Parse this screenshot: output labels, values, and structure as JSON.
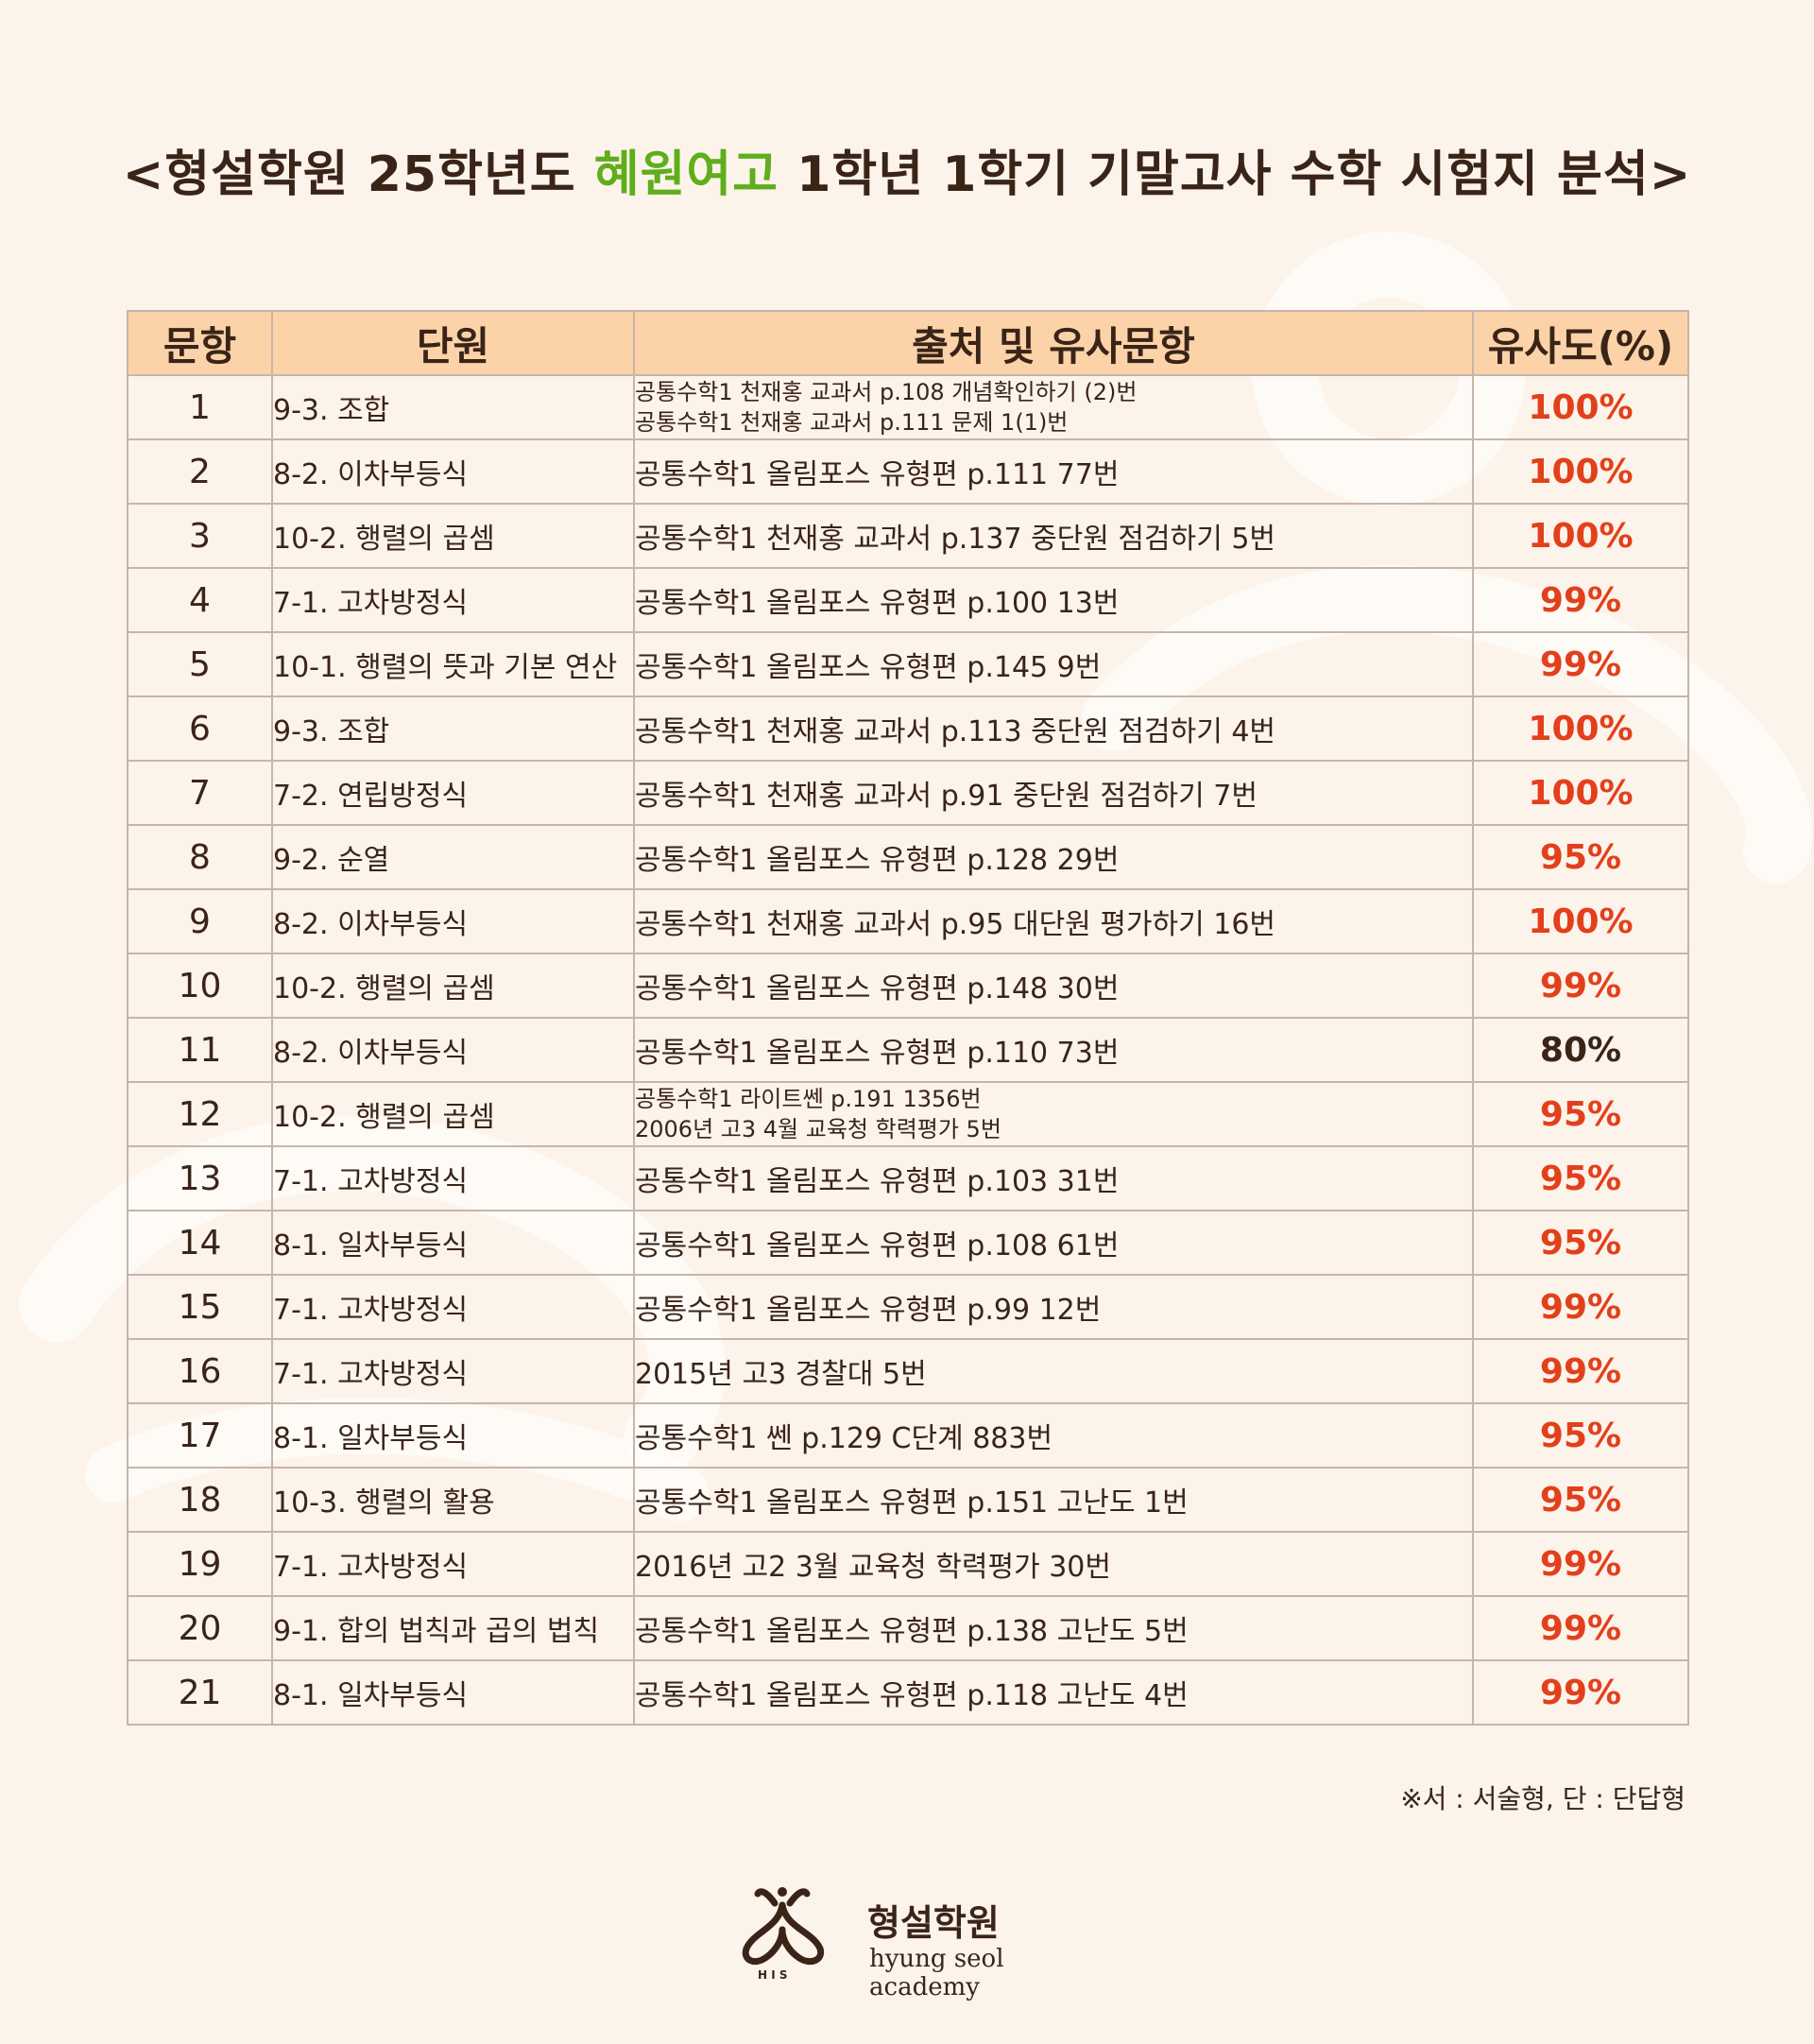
{
  "title": {
    "prefix": "<형설학원 25학년도 ",
    "highlight": "혜원여고",
    "suffix": " 1학년 1학기 기말고사 수학 시험지 분석>"
  },
  "colors": {
    "background": "#fcf3ea",
    "header_bg": "#fcd3a9",
    "highlight": "#5fae1c",
    "similarity_red": "#e2401c",
    "text_dark": "#3a2418"
  },
  "table": {
    "headers": [
      "문항",
      "단원",
      "출처 및 유사문항",
      "유사도(%)"
    ],
    "rows": [
      {
        "no": "1",
        "unit": "9-3. 조합",
        "source": [
          "공통수학1 천재홍 교과서 p.108 개념확인하기 (2)번",
          "공통수학1 천재홍 교과서 p.111 문제 1(1)번"
        ],
        "similarity": "100%"
      },
      {
        "no": "2",
        "unit": "8-2. 이차부등식",
        "source": [
          "공통수학1 올림포스 유형편 p.111 77번"
        ],
        "similarity": "100%"
      },
      {
        "no": "3",
        "unit": "10-2. 행렬의 곱셈",
        "source": [
          "공통수학1 천재홍 교과서 p.137 중단원 점검하기 5번"
        ],
        "similarity": "100%"
      },
      {
        "no": "4",
        "unit": "7-1. 고차방정식",
        "source": [
          "공통수학1 올림포스 유형편 p.100 13번"
        ],
        "similarity": "99%"
      },
      {
        "no": "5",
        "unit": "10-1. 행렬의 뜻과 기본 연산",
        "source": [
          "공통수학1 올림포스 유형편 p.145 9번"
        ],
        "similarity": "99%"
      },
      {
        "no": "6",
        "unit": "9-3. 조합",
        "source": [
          "공통수학1 천재홍 교과서 p.113 중단원 점검하기 4번"
        ],
        "similarity": "100%"
      },
      {
        "no": "7",
        "unit": "7-2. 연립방정식",
        "source": [
          "공통수학1 천재홍 교과서 p.91 중단원 점검하기 7번"
        ],
        "similarity": "100%"
      },
      {
        "no": "8",
        "unit": "9-2. 순열",
        "source": [
          "공통수학1 올림포스 유형편 p.128 29번"
        ],
        "similarity": "95%"
      },
      {
        "no": "9",
        "unit": "8-2. 이차부등식",
        "source": [
          "공통수학1 천재홍 교과서 p.95 대단원 평가하기 16번"
        ],
        "similarity": "100%"
      },
      {
        "no": "10",
        "unit": "10-2. 행렬의 곱셈",
        "source": [
          "공통수학1 올림포스 유형편 p.148 30번"
        ],
        "similarity": "99%"
      },
      {
        "no": "11",
        "unit": "8-2. 이차부등식",
        "source": [
          "공통수학1 올림포스 유형편 p.110 73번"
        ],
        "similarity": "80%"
      },
      {
        "no": "12",
        "unit": "10-2. 행렬의 곱셈",
        "source": [
          "공통수학1 라이트쎈 p.191 1356번",
          "2006년 고3 4월 교육청 학력평가 5번"
        ],
        "similarity": "95%"
      },
      {
        "no": "13",
        "unit": "7-1. 고차방정식",
        "source": [
          "공통수학1 올림포스 유형편 p.103 31번"
        ],
        "similarity": "95%"
      },
      {
        "no": "14",
        "unit": "8-1. 일차부등식",
        "source": [
          "공통수학1 올림포스 유형편 p.108 61번"
        ],
        "similarity": "95%"
      },
      {
        "no": "15",
        "unit": "7-1. 고차방정식",
        "source": [
          "공통수학1 올림포스 유형편 p.99 12번"
        ],
        "similarity": "99%"
      },
      {
        "no": "16",
        "unit": "7-1. 고차방정식",
        "source": [
          "2015년 고3 경찰대 5번"
        ],
        "similarity": "99%"
      },
      {
        "no": "17",
        "unit": "8-1. 일차부등식",
        "source": [
          "공통수학1 쎈 p.129 C단계 883번"
        ],
        "similarity": "95%"
      },
      {
        "no": "18",
        "unit": "10-3. 행렬의 활용",
        "source": [
          "공통수학1 올림포스 유형편 p.151 고난도 1번"
        ],
        "similarity": "95%"
      },
      {
        "no": "19",
        "unit": "7-1. 고차방정식",
        "source": [
          "2016년 고2 3월 교육청 학력평가 30번"
        ],
        "similarity": "99%"
      },
      {
        "no": "20",
        "unit": "9-1. 합의 법칙과 곱의 법칙",
        "source": [
          "공통수학1 올림포스 유형편 p.138 고난도 5번"
        ],
        "similarity": "99%"
      },
      {
        "no": "21",
        "unit": "8-1. 일차부등식",
        "source": [
          "공통수학1 올림포스 유형편 p.118 고난도 4번"
        ],
        "similarity": "99%"
      }
    ]
  },
  "footnote": "※서 : 서술형, 단 : 단답형",
  "logo": {
    "icon": "hyung-seol-logo-icon",
    "name": "형설학원",
    "subtitle": "hyung seol academy"
  }
}
